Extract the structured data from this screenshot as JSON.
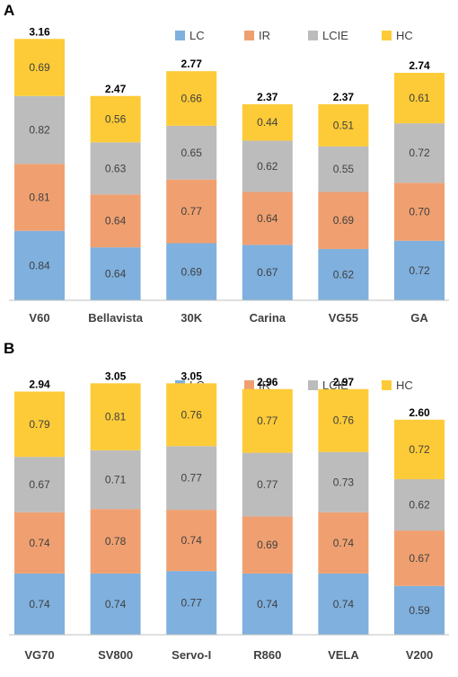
{
  "chart_data": [
    {
      "panel": "A",
      "type": "bar",
      "stacked": true,
      "categories": [
        "V60",
        "Bellavista",
        "30K",
        "Carina",
        "VG55",
        "GA"
      ],
      "series": [
        {
          "name": "LC",
          "color": "#7fb0de",
          "values": [
            0.84,
            0.64,
            0.69,
            0.67,
            0.62,
            0.72
          ]
        },
        {
          "name": "IR",
          "color": "#f0a070",
          "values": [
            0.81,
            0.64,
            0.77,
            0.64,
            0.69,
            0.7
          ]
        },
        {
          "name": "LCIE",
          "color": "#bcbcbc",
          "values": [
            0.82,
            0.63,
            0.65,
            0.62,
            0.55,
            0.72
          ]
        },
        {
          "name": "HC",
          "color": "#fdcb37",
          "values": [
            0.69,
            0.56,
            0.66,
            0.44,
            0.51,
            0.61
          ]
        }
      ],
      "totals": [
        3.16,
        2.47,
        2.77,
        2.37,
        2.37,
        2.74
      ],
      "legend_position": "top-right"
    },
    {
      "panel": "B",
      "type": "bar",
      "stacked": true,
      "categories": [
        "VG70",
        "SV800",
        "Servo-I",
        "R860",
        "VELA",
        "V200"
      ],
      "series": [
        {
          "name": "LC",
          "color": "#7fb0de",
          "values": [
            0.74,
            0.74,
            0.77,
            0.74,
            0.74,
            0.59
          ]
        },
        {
          "name": "IR",
          "color": "#f0a070",
          "values": [
            0.74,
            0.78,
            0.74,
            0.69,
            0.74,
            0.67
          ]
        },
        {
          "name": "LCIE",
          "color": "#bcbcbc",
          "values": [
            0.67,
            0.71,
            0.77,
            0.77,
            0.73,
            0.62
          ]
        },
        {
          "name": "HC",
          "color": "#fdcb37",
          "values": [
            0.79,
            0.81,
            0.76,
            0.77,
            0.76,
            0.72
          ]
        }
      ],
      "totals": [
        2.94,
        3.05,
        3.05,
        2.96,
        2.97,
        2.6
      ],
      "legend_position": "top-right"
    }
  ]
}
